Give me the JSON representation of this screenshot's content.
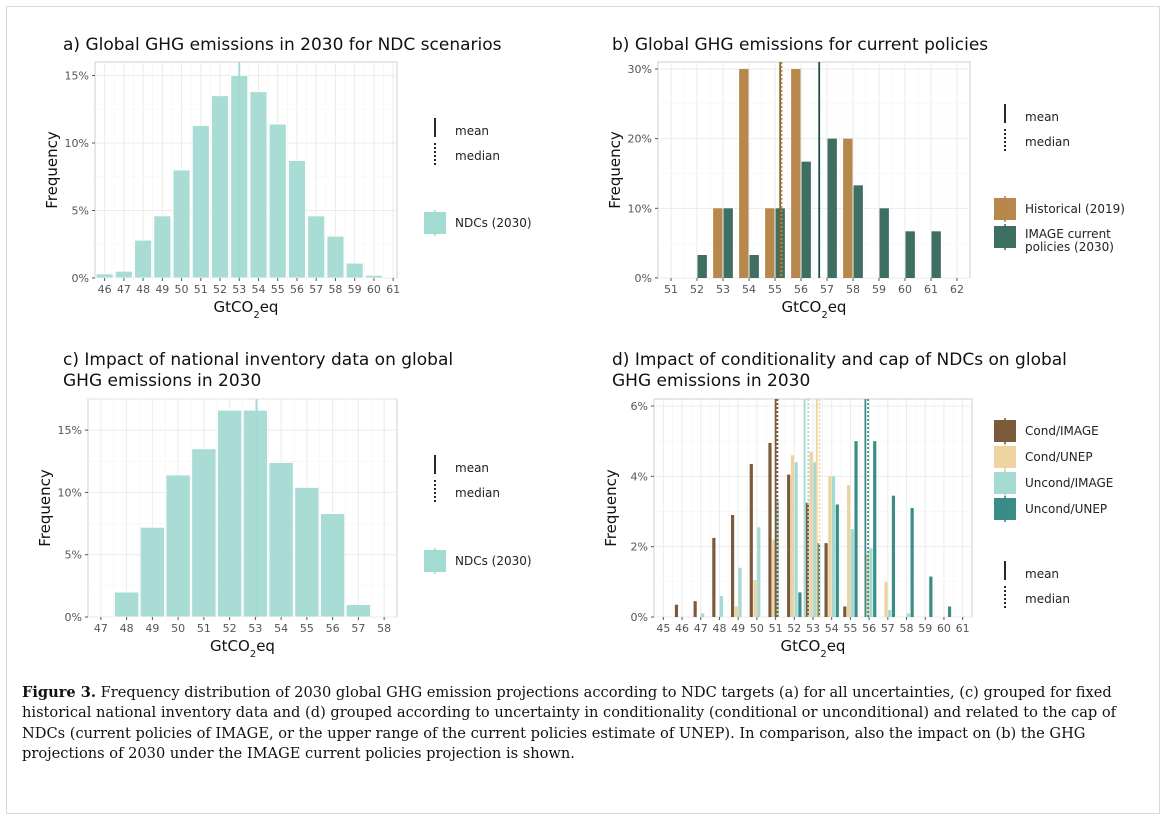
{
  "colors": {
    "ndc": "#a3dad2",
    "historical": "#b8874c",
    "image_current": "#3f6e63",
    "mean_b_hist": "#8a5a1f",
    "mean_b_image": "#1f4f48",
    "cond_image": "#7a5a3a",
    "cond_unep": "#ecd3a0",
    "uncond_image": "#a3dad2",
    "uncond_unep": "#3a8d86"
  },
  "legend_common": {
    "mean": "mean",
    "median": "median"
  },
  "chart_data": [
    {
      "id": "a",
      "type": "bar",
      "title": "a) Global GHG emissions in 2030 for NDC scenarios",
      "xlabel": "GtCO",
      "xlabel_sub": "2",
      "xlabel_suffix": "eq",
      "ylabel": "Frequency",
      "xlim": [
        45.5,
        61.2
      ],
      "ylim": [
        0,
        16
      ],
      "xticks": [
        46,
        47,
        48,
        49,
        50,
        51,
        52,
        53,
        54,
        55,
        56,
        57,
        58,
        59,
        60,
        61
      ],
      "yticks": [
        0,
        5,
        10,
        15
      ],
      "ytick_labels": [
        "0%",
        "5%",
        "10%",
        "15%"
      ],
      "bin_width": 0.88,
      "series": [
        {
          "name": "NDCs (2030)",
          "color_key": "ndc",
          "x": [
            46,
            47,
            48,
            49,
            50,
            51,
            52,
            53,
            54,
            55,
            56,
            57,
            58,
            59,
            60
          ],
          "values": [
            0.3,
            0.5,
            2.8,
            4.6,
            8.0,
            11.3,
            13.5,
            15.0,
            13.8,
            11.4,
            8.7,
            4.6,
            3.1,
            1.1,
            0.2
          ]
        }
      ],
      "mean_lines": [
        {
          "x": 53.0,
          "style": "solid",
          "color_key": "ndc"
        }
      ],
      "median_lines": [
        {
          "x": 53.0,
          "style": "dotted",
          "color_key": "ndc"
        }
      ]
    },
    {
      "id": "b",
      "type": "bar",
      "title": "b) Global GHG emissions for current policies",
      "xlabel": "GtCO",
      "xlabel_sub": "2",
      "xlabel_suffix": "eq",
      "ylabel": "Frequency",
      "xlim": [
        50.5,
        62.5
      ],
      "ylim": [
        0,
        31
      ],
      "xticks": [
        51,
        52,
        53,
        54,
        55,
        56,
        57,
        58,
        59,
        60,
        61,
        62
      ],
      "yticks": [
        0,
        10,
        20,
        30
      ],
      "ytick_labels": [
        "0%",
        "10%",
        "20%",
        "30%"
      ],
      "bin_width": 0.36,
      "series": [
        {
          "name": "Historical (2019)",
          "color_key": "historical",
          "x": [
            52.8,
            53.8,
            54.8,
            55.8,
            56.8,
            57.8
          ],
          "values": [
            10,
            30,
            10,
            30,
            0,
            20
          ]
        },
        {
          "name": "IMAGE current\npolicies (2030)",
          "color_key": "image_current",
          "x": [
            52.2,
            53.2,
            54.2,
            55.2,
            56.2,
            57.2,
            58.2,
            59.2,
            60.2,
            61.2
          ],
          "values": [
            3.3,
            10,
            3.3,
            10,
            16.7,
            20,
            13.3,
            10,
            6.7,
            6.7
          ]
        }
      ],
      "mean_lines": [
        {
          "x": 55.2,
          "style": "solid",
          "color_key": "mean_b_hist"
        },
        {
          "x": 56.7,
          "style": "solid",
          "color_key": "mean_b_image"
        }
      ],
      "median_lines": [
        {
          "x": 55.25,
          "style": "dotted",
          "color_key": "historical"
        }
      ]
    },
    {
      "id": "c",
      "type": "bar",
      "title": "c) Impact of national inventory data on global",
      "title2": "GHG emissions in 2030",
      "xlabel": "GtCO",
      "xlabel_sub": "2",
      "xlabel_suffix": "eq",
      "ylabel": "Frequency",
      "xlim": [
        46.5,
        58.5
      ],
      "ylim": [
        0,
        17.5
      ],
      "xticks": [
        47,
        48,
        49,
        50,
        51,
        52,
        53,
        54,
        55,
        56,
        57,
        58
      ],
      "yticks": [
        0,
        5,
        10,
        15
      ],
      "ytick_labels": [
        "0%",
        "5%",
        "10%",
        "15%"
      ],
      "bin_width": 0.94,
      "series": [
        {
          "name": "NDCs (2030)",
          "color_key": "ndc",
          "x": [
            48,
            49,
            50,
            51,
            52,
            53,
            54,
            55,
            56,
            57
          ],
          "values": [
            2.0,
            7.2,
            11.4,
            13.5,
            16.6,
            16.6,
            12.4,
            10.4,
            8.3,
            1.0
          ]
        }
      ],
      "mean_lines": [
        {
          "x": 53.05,
          "style": "solid",
          "color_key": "ndc"
        }
      ],
      "median_lines": [
        {
          "x": 53.05,
          "style": "dotted",
          "color_key": "ndc"
        }
      ]
    },
    {
      "id": "d",
      "type": "bar",
      "title": "d) Impact of conditionality and cap of NDCs on global",
      "title2": "GHG emissions in 2030",
      "xlabel": "GtCO",
      "xlabel_sub": "2",
      "xlabel_suffix": "eq",
      "ylabel": "Frequency",
      "xlim": [
        44.5,
        61.5
      ],
      "ylim": [
        0,
        6.2
      ],
      "xticks": [
        45,
        46,
        47,
        48,
        49,
        50,
        51,
        52,
        53,
        54,
        55,
        56,
        57,
        58,
        59,
        60,
        61
      ],
      "yticks": [
        0,
        2,
        4,
        6
      ],
      "ytick_labels": [
        "0%",
        "2%",
        "4%",
        "6%"
      ],
      "bin_width": 0.17,
      "series": [
        {
          "name": "Cond/IMAGE",
          "color_key": "cond_image",
          "x": [
            45.7,
            46.7,
            47.7,
            48.7,
            49.7,
            50.7,
            51.7,
            52.7,
            53.7,
            54.7
          ],
          "values": [
            0.35,
            0.45,
            2.25,
            2.9,
            4.35,
            4.95,
            4.05,
            3.25,
            2.1,
            0.3
          ]
        },
        {
          "name": "Cond/UNEP",
          "color_key": "cond_unep",
          "x": [
            48.9,
            49.9,
            50.9,
            51.9,
            52.9,
            53.9,
            54.9,
            55.9,
            56.9
          ],
          "values": [
            0.3,
            1.05,
            2.2,
            4.6,
            4.7,
            4.0,
            3.75,
            1.8,
            1.0
          ]
        },
        {
          "name": "Uncond/IMAGE",
          "color_key": "uncond_image",
          "x": [
            47.1,
            48.1,
            49.1,
            50.1,
            51.1,
            52.1,
            53.1,
            54.1,
            55.1,
            56.1,
            57.1,
            58.1
          ],
          "values": [
            0.1,
            0.6,
            1.4,
            2.55,
            3.3,
            4.4,
            4.4,
            4.0,
            2.5,
            1.95,
            0.2,
            0.1
          ]
        },
        {
          "name": "Uncond/UNEP",
          "color_key": "uncond_unep",
          "x": [
            52.3,
            53.3,
            54.3,
            55.3,
            56.3,
            57.3,
            58.3,
            59.3,
            60.3
          ],
          "values": [
            0.7,
            2.1,
            3.2,
            5.0,
            5.0,
            3.45,
            3.1,
            1.15,
            0.3
          ]
        }
      ],
      "mean_lines": [
        {
          "x": 51.0,
          "style": "solid",
          "color_key": "cond_image"
        },
        {
          "x": 52.55,
          "style": "solid",
          "color_key": "uncond_image"
        },
        {
          "x": 53.2,
          "style": "solid",
          "color_key": "cond_unep"
        },
        {
          "x": 55.8,
          "style": "solid",
          "color_key": "uncond_unep"
        }
      ],
      "median_lines": [
        {
          "x": 51.1,
          "style": "dotted",
          "color_key": "cond_image"
        },
        {
          "x": 52.75,
          "style": "dotted",
          "color_key": "uncond_image"
        },
        {
          "x": 53.35,
          "style": "dotted",
          "color_key": "cond_unep"
        },
        {
          "x": 55.95,
          "style": "dotted",
          "color_key": "uncond_unep"
        }
      ]
    }
  ],
  "caption": {
    "label": "Figure 3.",
    "text": " Frequency distribution of 2030 global GHG emission projections according to NDC targets (a) for all uncertainties, (c) grouped for fixed historical national inventory data and (d) grouped according to uncertainty in conditionality (conditional or unconditional) and related to the cap of NDCs (current policies of IMAGE, or the upper range of the current policies estimate of UNEP). In comparison, also the impact on (b) the GHG projections of 2030 under the IMAGE current policies projection is shown."
  }
}
